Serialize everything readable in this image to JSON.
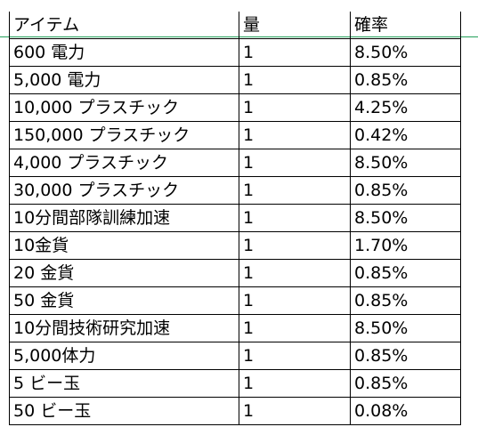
{
  "header": {
    "item": "アイテム",
    "quantity": "量",
    "rate": "確率"
  },
  "rows": [
    {
      "item": "600 電力",
      "quantity": "1",
      "rate": "8.50%"
    },
    {
      "item": "5,000 電力",
      "quantity": "1",
      "rate": "0.85%"
    },
    {
      "item": "10,000 プラスチック",
      "quantity": "1",
      "rate": "4.25%"
    },
    {
      "item": "150,000 プラスチック",
      "quantity": "1",
      "rate": "0.42%"
    },
    {
      "item": "4,000 プラスチック",
      "quantity": "1",
      "rate": "8.50%"
    },
    {
      "item": "30,000 プラスチック",
      "quantity": "1",
      "rate": "0.85%"
    },
    {
      "item": "10分間部隊訓練加速",
      "quantity": "1",
      "rate": "8.50%"
    },
    {
      "item": "10金貨",
      "quantity": "1",
      "rate": "1.70%"
    },
    {
      "item": "20 金貨",
      "quantity": "1",
      "rate": "0.85%"
    },
    {
      "item": "50 金貨",
      "quantity": "1",
      "rate": "0.85%"
    },
    {
      "item": "10分間技術研究加速",
      "quantity": "1",
      "rate": "8.50%"
    },
    {
      "item": "5,000体力",
      "quantity": "1",
      "rate": "0.85%"
    },
    {
      "item": "5 ビー玉",
      "quantity": "1",
      "rate": "0.85%"
    },
    {
      "item": "50 ビー玉",
      "quantity": "1",
      "rate": "0.08%"
    }
  ],
  "colors": {
    "gridline": "#22a05a",
    "border": "#000000",
    "text": "#000000"
  }
}
